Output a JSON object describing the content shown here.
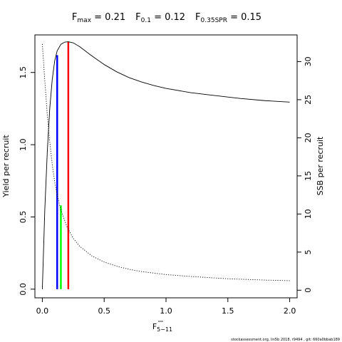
{
  "chart_data": {
    "type": "line",
    "title": {
      "fmax_label": "F",
      "fmax_sub": "max",
      "fmax_value": " = 0.21",
      "f01_label": "F",
      "f01_sub": "0.1",
      "f01_value": " = 0.12",
      "f35_label": "F",
      "f35_sub": "0.35SPR",
      "f35_value": " = 0.15"
    },
    "xlabel": "F",
    "xlabel_sub": "5−11",
    "ylabel": "Yield per recruit",
    "ylabel_right": "SSB per recruit",
    "xlim": [
      -0.06,
      2.06
    ],
    "ylim": [
      -0.06,
      1.76
    ],
    "ylim_right": [
      -1.0,
      33.5
    ],
    "x_ticks": [
      0.0,
      0.5,
      1.0,
      1.5,
      2.0
    ],
    "x_tick_labels": [
      "0.0",
      "0.5",
      "1.0",
      "1.5",
      "2.0"
    ],
    "y_ticks": [
      0.0,
      0.5,
      1.0,
      1.5
    ],
    "y_tick_labels": [
      "0.0",
      "0.5",
      "1.0",
      "1.5"
    ],
    "y_ticks_right": [
      0,
      5,
      10,
      15,
      20,
      25,
      30
    ],
    "y_tick_labels_right": [
      "0",
      "5",
      "10",
      "15",
      "20",
      "25",
      "30"
    ],
    "series": [
      {
        "axis": "left",
        "style": "solid",
        "color": "#000000",
        "x": [
          0.0,
          0.02,
          0.04,
          0.06,
          0.08,
          0.1,
          0.12,
          0.15,
          0.18,
          0.21,
          0.25,
          0.3,
          0.4,
          0.5,
          0.6,
          0.7,
          0.8,
          0.9,
          1.0,
          1.2,
          1.4,
          1.6,
          1.8,
          2.0
        ],
        "y": [
          0.0,
          0.55,
          0.95,
          1.25,
          1.45,
          1.58,
          1.65,
          1.695,
          1.71,
          1.713,
          1.705,
          1.68,
          1.615,
          1.555,
          1.505,
          1.465,
          1.435,
          1.41,
          1.39,
          1.36,
          1.34,
          1.32,
          1.305,
          1.295
        ]
      },
      {
        "axis": "right",
        "style": "dotted",
        "color": "#000000",
        "x": [
          0.0,
          0.02,
          0.04,
          0.06,
          0.08,
          0.1,
          0.12,
          0.15,
          0.2,
          0.25,
          0.3,
          0.4,
          0.5,
          0.6,
          0.7,
          0.8,
          1.0,
          1.2,
          1.5,
          1.8,
          2.0
        ],
        "y": [
          32.3,
          27.5,
          23.0,
          19.5,
          16.5,
          14.2,
          12.5,
          10.5,
          8.3,
          6.8,
          5.8,
          4.5,
          3.7,
          3.15,
          2.75,
          2.45,
          2.05,
          1.8,
          1.5,
          1.33,
          1.25
        ]
      }
    ],
    "reference_lines": [
      {
        "name": "Fmax",
        "x": 0.21,
        "y_top": 1.713,
        "color": "#ff0000"
      },
      {
        "name": "F0.1",
        "x": 0.12,
        "y_top": 1.62,
        "color": "#0000ff"
      },
      {
        "name": "F0.35SPR",
        "x": 0.15,
        "y_top": 0.58,
        "color": "#00ff00"
      }
    ]
  },
  "footer": {
    "text": "stockassessment.org, lin5b  2018, r9494 , git: 660a0bbab189"
  }
}
